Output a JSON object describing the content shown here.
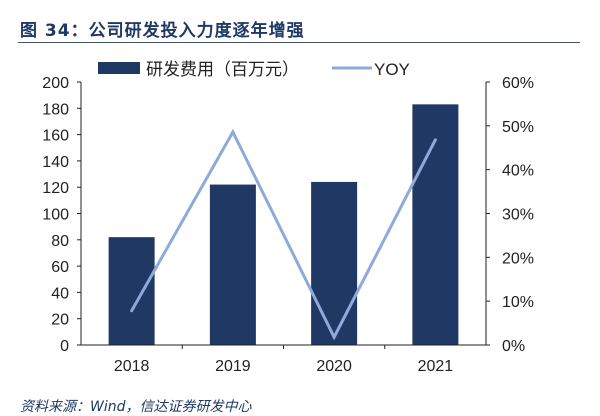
{
  "header": {
    "title": "图 34：公司研发投入力度逐年增强"
  },
  "footer": {
    "source": "资料来源：Wind，信达证券研发中心"
  },
  "chart_data": {
    "type": "bar+line",
    "categories": [
      "2018",
      "2019",
      "2020",
      "2021"
    ],
    "series": [
      {
        "name": "研发费用（百万元）",
        "type": "bar",
        "axis": "left",
        "values": [
          82,
          122,
          124,
          183
        ],
        "color": "#203864"
      },
      {
        "name": "YOY",
        "type": "line",
        "axis": "right",
        "values": [
          7.8,
          48.6,
          1.8,
          46.8
        ],
        "unit": "%",
        "color": "#8eaadb"
      }
    ],
    "left_axis": {
      "ylim": [
        0,
        200
      ],
      "ticks": [
        "0",
        "20",
        "40",
        "60",
        "80",
        "100",
        "120",
        "140",
        "160",
        "180",
        "200"
      ]
    },
    "right_axis": {
      "ylim": [
        0,
        60
      ],
      "ticks": [
        "0%",
        "10%",
        "20%",
        "30%",
        "40%",
        "50%",
        "60%"
      ]
    },
    "grid": false,
    "legend": "top"
  }
}
